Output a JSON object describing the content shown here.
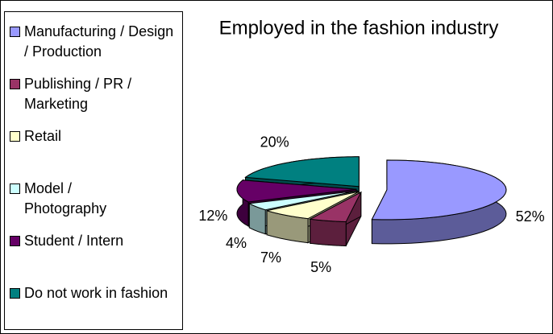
{
  "chart_data": {
    "type": "pie3d",
    "title": "Employed in the fashion industry",
    "categories": [
      "Manufacturing / Design / Production",
      "Publishing / PR / Marketing",
      "Retail",
      "Model / Photography",
      "Student / Intern",
      "Do not work in fashion"
    ],
    "values": [
      52,
      5,
      7,
      4,
      12,
      20
    ],
    "value_labels": [
      "52%",
      "5%",
      "7%",
      "4%",
      "12%",
      "20%"
    ],
    "colors": [
      "#9999ff",
      "#993366",
      "#ffffcc",
      "#ccffff",
      "#660066",
      "#008080"
    ],
    "legend": "left"
  }
}
